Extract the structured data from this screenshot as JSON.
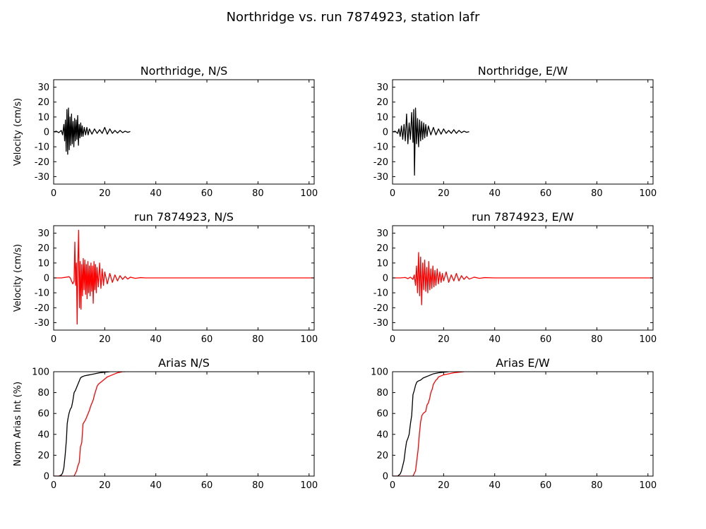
{
  "figure": {
    "title": "Northridge vs. run 7874923, station lafr"
  },
  "colors": {
    "observed": "#000000",
    "simulated": "#ff0000"
  },
  "chart_data": [
    {
      "id": "obs-ns",
      "type": "line",
      "title": "Northridge, N/S",
      "xlabel": "",
      "ylabel": "Velocity (cm/s)",
      "xlim": [
        0,
        102
      ],
      "ylim": [
        -35,
        35
      ],
      "xticks": [
        0,
        20,
        40,
        60,
        80,
        100
      ],
      "yticks": [
        -30,
        -20,
        -10,
        0,
        10,
        20,
        30
      ],
      "grid": false,
      "series": [
        {
          "color": "#000000",
          "x": [
            0,
            1,
            2,
            3,
            3.5,
            4,
            4.3,
            4.6,
            4.9,
            5.2,
            5.5,
            5.8,
            6.1,
            6.4,
            6.7,
            7,
            7.3,
            7.6,
            7.9,
            8.2,
            8.5,
            8.8,
            9.1,
            9.4,
            9.7,
            10,
            10.3,
            10.6,
            10.9,
            11.2,
            11.5,
            12,
            12.5,
            13,
            13.5,
            14,
            15,
            16,
            17,
            18,
            19,
            20,
            21,
            22,
            23,
            24,
            25,
            26,
            27,
            28,
            29,
            30
          ],
          "y": [
            0,
            0.5,
            -0.5,
            1,
            -2,
            5,
            -6,
            8,
            -13,
            15,
            -15,
            16,
            -12,
            10,
            -9,
            12,
            -8,
            7,
            -10,
            9,
            -6,
            8,
            -5,
            11,
            -9,
            5,
            -4,
            6,
            -3,
            4,
            -3,
            3,
            -2,
            3,
            -2,
            2,
            -1.5,
            2,
            -1,
            1.5,
            -1,
            3,
            -1.5,
            2,
            -1,
            1,
            -0.8,
            1,
            -0.5,
            0.5,
            -0.3,
            0.3
          ]
        }
      ]
    },
    {
      "id": "obs-ew",
      "type": "line",
      "title": "Northridge, E/W",
      "xlabel": "",
      "ylabel": "",
      "xlim": [
        0,
        102
      ],
      "ylim": [
        -35,
        35
      ],
      "xticks": [
        0,
        20,
        40,
        60,
        80,
        100
      ],
      "yticks": [
        -30,
        -20,
        -10,
        0,
        10,
        20,
        30
      ],
      "grid": false,
      "series": [
        {
          "color": "#000000",
          "x": [
            0,
            1,
            2,
            2.5,
            3,
            3.5,
            4,
            4.5,
            5,
            5.5,
            6,
            6.5,
            7,
            7.5,
            8,
            8.3,
            8.6,
            9,
            9.4,
            9.8,
            10.2,
            10.6,
            11,
            11.4,
            11.8,
            12.2,
            12.6,
            13,
            13.5,
            14,
            15,
            16,
            17,
            18,
            19,
            20,
            21,
            22,
            23,
            24,
            25,
            26,
            27,
            28,
            29,
            30
          ],
          "y": [
            0,
            0.5,
            -1,
            2,
            -3,
            4,
            -5,
            5,
            -6,
            12,
            -8,
            6,
            -5,
            13,
            -7,
            15,
            -29,
            16,
            -8,
            9,
            -10,
            8,
            -6,
            7,
            -5,
            6,
            -4,
            5,
            -3,
            4,
            -2,
            3,
            -2,
            2,
            -1.5,
            2,
            -1,
            1,
            -1,
            1.5,
            -1,
            1,
            -0.5,
            0.5,
            -0.3,
            0.2
          ]
        }
      ]
    },
    {
      "id": "sim-ns",
      "type": "line",
      "title": "run 7874923, N/S",
      "xlabel": "",
      "ylabel": "Velocity (cm/s)",
      "xlim": [
        0,
        102
      ],
      "ylim": [
        -35,
        35
      ],
      "xticks": [
        0,
        20,
        40,
        60,
        80,
        100
      ],
      "yticks": [
        -30,
        -20,
        -10,
        0,
        10,
        20,
        30
      ],
      "grid": false,
      "series": [
        {
          "color": "#ff0000",
          "x": [
            0,
            3,
            5,
            6,
            6.5,
            7,
            7.5,
            8,
            8.3,
            8.6,
            8.9,
            9.2,
            9.5,
            9.8,
            10.1,
            10.4,
            10.7,
            11,
            11.3,
            11.6,
            11.9,
            12.2,
            12.5,
            12.8,
            13.1,
            13.4,
            13.7,
            14,
            14.3,
            14.6,
            14.9,
            15.2,
            15.5,
            15.8,
            16.1,
            16.4,
            16.7,
            17,
            17.5,
            18,
            18.5,
            19,
            19.5,
            20,
            21,
            22,
            23,
            24,
            25,
            26,
            27,
            28,
            29,
            30,
            32,
            34,
            36,
            40,
            50,
            60,
            70,
            80,
            90,
            102
          ],
          "y": [
            0,
            0,
            0.5,
            0.8,
            0,
            -2,
            -4,
            -2,
            24,
            -5,
            10,
            -31,
            12,
            32,
            -20,
            11,
            -21,
            9,
            -12,
            13,
            -8,
            12,
            -11,
            9,
            -14,
            11,
            -10,
            8,
            -12,
            10,
            -9,
            8,
            -17,
            11,
            -8,
            9,
            -10,
            7,
            -6,
            10,
            -7,
            6,
            -5,
            4,
            -4,
            3,
            -3,
            2,
            -2,
            1.5,
            -1,
            1,
            -0.8,
            0.5,
            -0.3,
            0.2,
            0,
            0,
            0,
            0,
            0,
            0,
            0,
            0
          ]
        }
      ]
    },
    {
      "id": "sim-ew",
      "type": "line",
      "title": "run 7874923, E/W",
      "xlabel": "",
      "ylabel": "",
      "xlim": [
        0,
        102
      ],
      "ylim": [
        -35,
        35
      ],
      "xticks": [
        0,
        20,
        40,
        60,
        80,
        100
      ],
      "yticks": [
        -30,
        -20,
        -10,
        0,
        10,
        20,
        30
      ],
      "grid": false,
      "series": [
        {
          "color": "#ff0000",
          "x": [
            0,
            3,
            5,
            6,
            7,
            8,
            8.5,
            9,
            9.4,
            9.8,
            10.2,
            10.6,
            11,
            11.4,
            11.8,
            12.2,
            12.6,
            13,
            13.4,
            13.8,
            14.2,
            14.6,
            15,
            15.4,
            15.8,
            16.2,
            16.6,
            17,
            17.5,
            18,
            18.5,
            19,
            19.5,
            20,
            21,
            22,
            23,
            24,
            25,
            26,
            27,
            28,
            29,
            30,
            32,
            34,
            36,
            40,
            50,
            60,
            70,
            80,
            90,
            102
          ],
          "y": [
            0,
            0,
            0.3,
            -0.5,
            0.5,
            -1,
            2,
            -5,
            8,
            -10,
            17,
            -12,
            14,
            -18,
            10,
            -8,
            12,
            -9,
            7,
            -10,
            11,
            -8,
            6,
            -7,
            8,
            -6,
            5,
            -5,
            6,
            -4,
            4,
            -3,
            3,
            -2,
            4,
            -3,
            2,
            -2,
            3,
            -2,
            1.5,
            -1,
            1,
            -0.8,
            0.5,
            -0.3,
            0.2,
            0,
            0,
            0,
            0,
            0,
            0,
            0
          ]
        }
      ]
    },
    {
      "id": "arias-ns",
      "type": "line",
      "title": "Arias N/S",
      "xlabel": "",
      "ylabel": "Norm Arias Int (%)",
      "xlim": [
        0,
        102
      ],
      "ylim": [
        0,
        100
      ],
      "xticks": [
        0,
        20,
        40,
        60,
        80,
        100
      ],
      "yticks": [
        0,
        20,
        40,
        60,
        80,
        100
      ],
      "grid": false,
      "series": [
        {
          "color": "#000000",
          "x": [
            0,
            2,
            3,
            3.5,
            4,
            4.5,
            5,
            5.3,
            5.6,
            6,
            6.5,
            7,
            7.5,
            8,
            8.5,
            9,
            9.5,
            10,
            10.5,
            11,
            12,
            14,
            16,
            18,
            20,
            22
          ],
          "y": [
            0,
            0,
            1,
            3,
            8,
            20,
            35,
            50,
            55,
            60,
            64,
            66,
            72,
            80,
            82,
            85,
            88,
            91,
            94,
            95,
            96,
            97,
            98,
            99,
            99.5,
            100
          ]
        },
        {
          "color": "#ff0000",
          "x": [
            0,
            8,
            9,
            9.5,
            10,
            10.5,
            11,
            11.5,
            12,
            12.5,
            13,
            13.5,
            14,
            14.5,
            15,
            15.5,
            16,
            16.5,
            17,
            17.5,
            18,
            19,
            20,
            21,
            22,
            23,
            24,
            25,
            26,
            27,
            28
          ],
          "y": [
            0,
            0,
            5,
            10,
            13,
            28,
            32,
            50,
            52,
            54,
            57,
            60,
            63,
            67,
            70,
            73,
            78,
            82,
            86,
            88,
            89,
            91,
            93,
            95,
            96,
            97,
            98,
            99,
            99.5,
            100,
            100
          ]
        }
      ]
    },
    {
      "id": "arias-ew",
      "type": "line",
      "title": "Arias E/W",
      "xlabel": "",
      "ylabel": "",
      "xlim": [
        0,
        102
      ],
      "ylim": [
        0,
        100
      ],
      "xticks": [
        0,
        20,
        40,
        60,
        80,
        100
      ],
      "yticks": [
        0,
        20,
        40,
        60,
        80,
        100
      ],
      "grid": false,
      "series": [
        {
          "color": "#000000",
          "x": [
            0,
            2,
            3,
            3.5,
            4,
            4.5,
            5,
            5.5,
            6,
            6.5,
            7,
            7.5,
            8,
            8.5,
            9,
            9.5,
            10,
            11,
            12,
            14,
            16,
            18,
            20,
            22
          ],
          "y": [
            0,
            0,
            2,
            5,
            10,
            15,
            25,
            33,
            36,
            40,
            50,
            58,
            78,
            82,
            87,
            90,
            91,
            92,
            94,
            96,
            98,
            99,
            99.5,
            100
          ]
        },
        {
          "color": "#ff0000",
          "x": [
            0,
            8,
            9,
            9.5,
            10,
            10.5,
            11,
            11.5,
            12,
            12.5,
            13,
            13.5,
            14,
            14.5,
            15,
            15.5,
            16,
            16.5,
            17,
            17.5,
            18,
            19,
            20,
            21,
            22,
            24,
            26,
            28
          ],
          "y": [
            0,
            0,
            5,
            15,
            25,
            40,
            52,
            58,
            60,
            61,
            62,
            68,
            70,
            74,
            80,
            83,
            88,
            90,
            92,
            93,
            95,
            96,
            97,
            97.5,
            98,
            99,
            99.5,
            100
          ]
        }
      ]
    }
  ]
}
